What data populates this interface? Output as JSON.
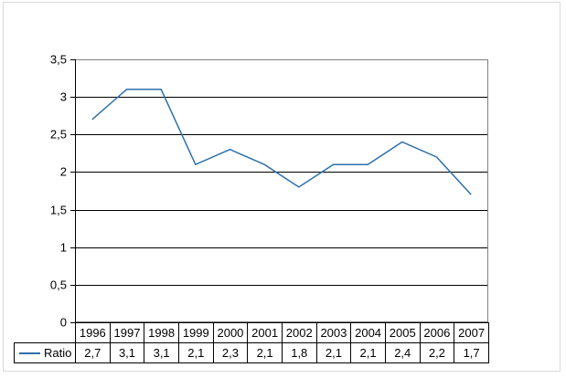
{
  "chart_data": {
    "type": "line",
    "title": "",
    "xlabel": "",
    "ylabel": "",
    "categories": [
      "1996",
      "1997",
      "1998",
      "1999",
      "2000",
      "2001",
      "2002",
      "2003",
      "2004",
      "2005",
      "2006",
      "2007"
    ],
    "series": [
      {
        "name": "Ratio",
        "values": [
          2.7,
          3.1,
          3.1,
          2.1,
          2.3,
          2.1,
          1.8,
          2.1,
          2.1,
          2.4,
          2.2,
          1.7
        ],
        "display_values": [
          "2,7",
          "3,1",
          "3,1",
          "2,1",
          "2,3",
          "2,1",
          "1,8",
          "2,1",
          "2,1",
          "2,4",
          "2,2",
          "1,7"
        ]
      }
    ],
    "ylim": [
      0,
      3.5
    ],
    "ytick_step": 0.5,
    "ytick_labels": [
      "0",
      "0,5",
      "1",
      "1,5",
      "2",
      "2,5",
      "3",
      "3,5"
    ],
    "grid": true,
    "legend_position": "bottom-left",
    "colors": {
      "series_line": "#2E6FAC",
      "gridline": "#000000",
      "axis": "#000000",
      "plot_border": "#808080",
      "table_border": "#000000",
      "outer_frame": "#d9d9d9",
      "text": "#000000",
      "background": "#ffffff"
    }
  }
}
